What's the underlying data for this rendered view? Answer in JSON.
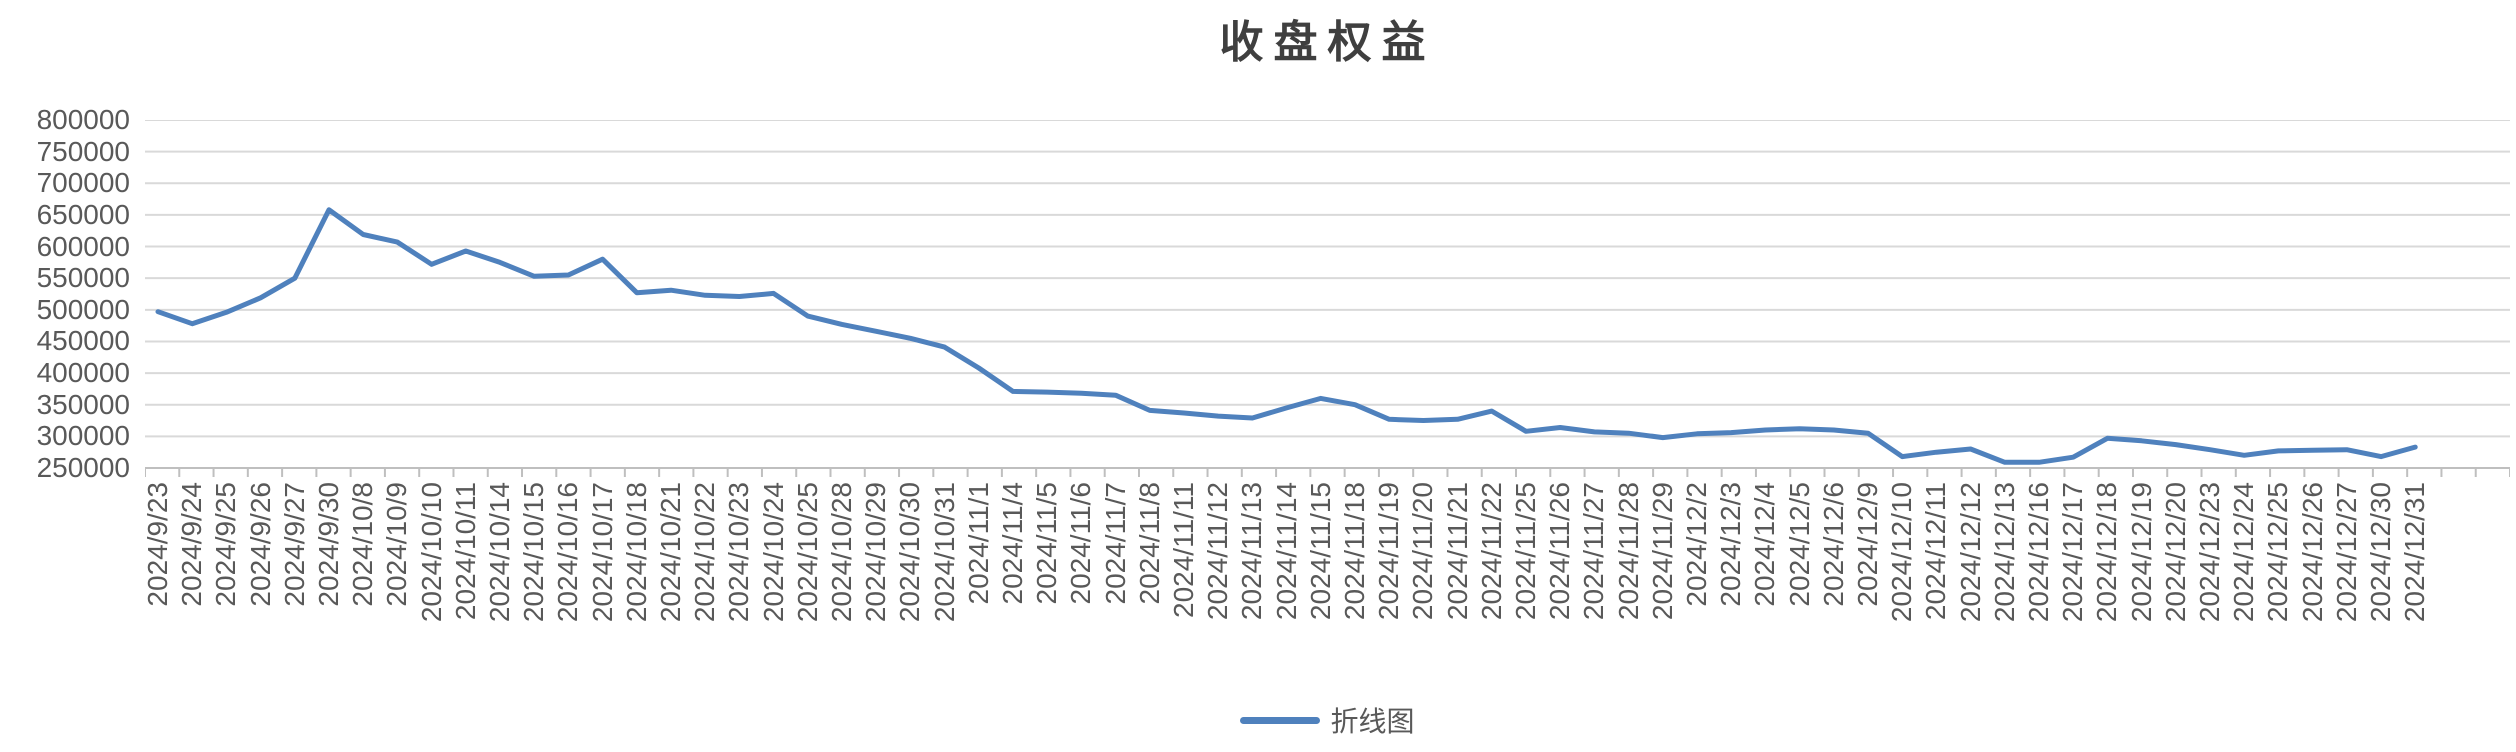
{
  "chart_data": {
    "type": "line",
    "title": "收盘权益",
    "categories": [
      "2024/9/23",
      "2024/9/24",
      "2024/9/25",
      "2024/9/26",
      "2024/9/27",
      "2024/9/30",
      "2024/10/8",
      "2024/10/9",
      "2024/10/10",
      "2024/10/11",
      "2024/10/14",
      "2024/10/15",
      "2024/10/16",
      "2024/10/17",
      "2024/10/18",
      "2024/10/21",
      "2024/10/22",
      "2024/10/23",
      "2024/10/24",
      "2024/10/25",
      "2024/10/28",
      "2024/10/29",
      "2024/10/30",
      "2024/10/31",
      "2024/11/1",
      "2024/11/4",
      "2024/11/5",
      "2024/11/6",
      "2024/11/7",
      "2024/11/8",
      "2024/11/11",
      "2024/11/12",
      "2024/11/13",
      "2024/11/14",
      "2024/11/15",
      "2024/11/18",
      "2024/11/19",
      "2024/11/20",
      "2024/11/21",
      "2024/11/22",
      "2024/11/25",
      "2024/11/26",
      "2024/11/27",
      "2024/11/28",
      "2024/11/29",
      "2024/12/2",
      "2024/12/3",
      "2024/12/4",
      "2024/12/5",
      "2024/12/6",
      "2024/12/9",
      "2024/12/10",
      "2024/12/11",
      "2024/12/12",
      "2024/12/13",
      "2024/12/16",
      "2024/12/17",
      "2024/12/18",
      "2024/12/19",
      "2024/12/20",
      "2024/12/23",
      "2024/12/24",
      "2024/12/25",
      "2024/12/26",
      "2024/12/27",
      "2024/12/30",
      "2024/12/31"
    ],
    "series": [
      {
        "name": "折线图",
        "color": "#4f81bd",
        "values": [
          497000,
          478000,
          496000,
          519000,
          550000,
          658000,
          619000,
          607000,
          572000,
          593000,
          575000,
          553000,
          555000,
          580000,
          527000,
          531000,
          523000,
          521000,
          526000,
          490000,
          477000,
          466000,
          455000,
          441000,
          408000,
          371000,
          370000,
          368000,
          365000,
          341000,
          337000,
          332000,
          329000,
          345000,
          360000,
          350000,
          327000,
          325000,
          327000,
          340000,
          308000,
          314000,
          307000,
          305000,
          298000,
          304000,
          306000,
          310000,
          312000,
          310000,
          305000,
          268000,
          275000,
          280000,
          259000,
          259000,
          267000,
          297000,
          293000,
          287000,
          279000,
          270000,
          277000,
          278000,
          279000,
          268000,
          283000
        ]
      }
    ],
    "xlabel": "",
    "ylabel": "",
    "ylim": [
      250000,
      800000
    ],
    "y_tick_step": 50000,
    "y_tick_labels": [
      "800000",
      "750000",
      "700000",
      "650000",
      "600000",
      "550000",
      "500000",
      "450000",
      "400000",
      "350000",
      "300000",
      "250000"
    ],
    "grid": true,
    "legend_position": "bottom",
    "colors": {
      "line": "#4f81bd",
      "gridline": "#d9d9d9",
      "axis_line": "#bfbfbf",
      "tick_text": "#595959",
      "title_text": "#3f3f3f",
      "background": "#ffffff"
    }
  }
}
